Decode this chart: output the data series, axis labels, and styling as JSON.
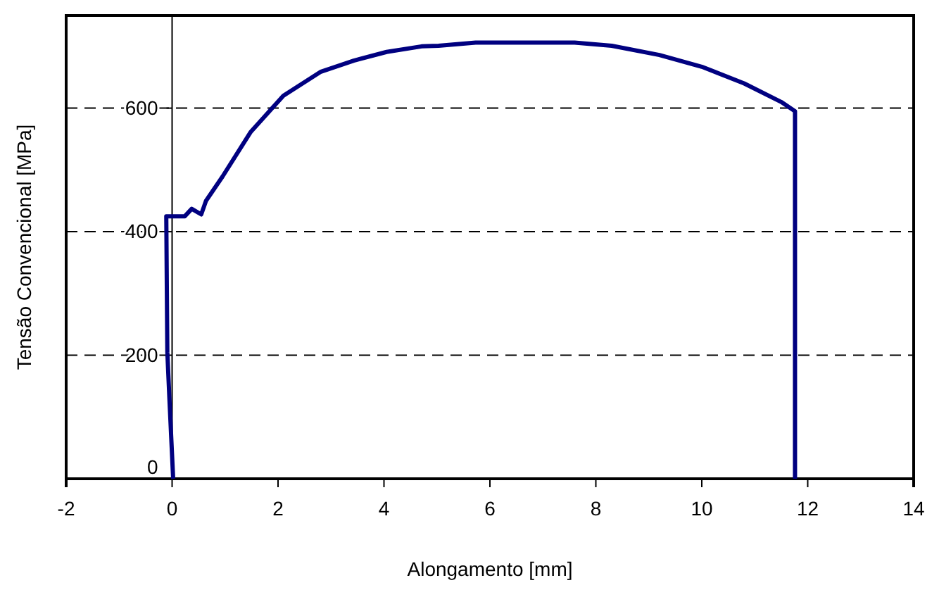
{
  "chart_data": {
    "type": "line",
    "xlabel": "Alongamento [mm]",
    "ylabel": "Tensão Convencional [MPa]",
    "xlim": [
      -2,
      14
    ],
    "xticks": [
      -2,
      0,
      2,
      4,
      6,
      8,
      10,
      12,
      14
    ],
    "ylim": [
      0,
      750
    ],
    "yticks": [
      0,
      200,
      400,
      600
    ],
    "grid": "y",
    "marker": "none",
    "line_style": "solid",
    "series": [
      {
        "color": "#000080",
        "x": [
          0.02,
          -0.05,
          -0.09,
          -0.11,
          0.24,
          0.37,
          0.55,
          0.64,
          0.95,
          1.48,
          2.1,
          2.81,
          3.43,
          4.05,
          4.71,
          5.03,
          5.73,
          7.6,
          8.3,
          9.2,
          10.0,
          10.8,
          11.5,
          11.76,
          11.76
        ],
        "values": [
          0,
          128,
          205,
          425,
          425,
          437,
          428,
          450,
          489,
          561,
          620,
          659,
          677,
          691,
          700,
          701,
          706,
          706,
          701,
          686,
          667,
          640,
          610,
          595,
          0
        ]
      }
    ]
  }
}
